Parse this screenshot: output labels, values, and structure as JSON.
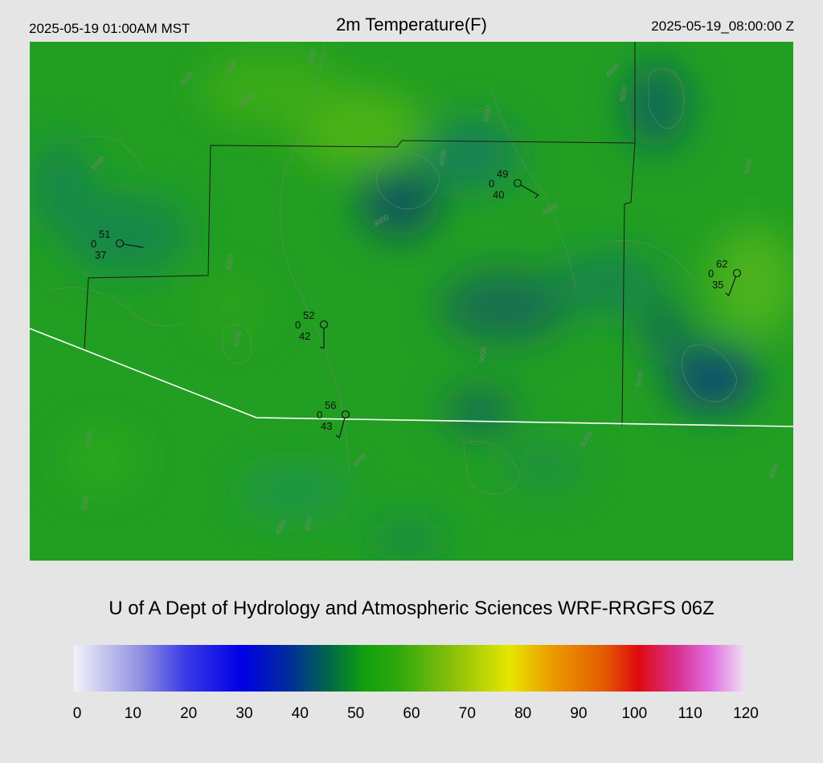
{
  "header": {
    "local_time": "2025-05-19 01:00AM MST",
    "title": "2m Temperature(F)",
    "utc_time": "2025-05-19_08:00:00 Z"
  },
  "credit": "U of A Dept of Hydrology and Atmospheric Sciences WRF-RRGFS 06Z",
  "colorbar": {
    "ticks": [
      "0",
      "10",
      "20",
      "30",
      "40",
      "50",
      "60",
      "70",
      "80",
      "90",
      "100",
      "110",
      "120"
    ],
    "stops": [
      {
        "v": 0,
        "c": "#f2f2f8"
      },
      {
        "v": 12,
        "c": "#8f8fe2"
      },
      {
        "v": 20,
        "c": "#3a3ae6"
      },
      {
        "v": 30,
        "c": "#0000e6"
      },
      {
        "v": 38,
        "c": "#002aa0"
      },
      {
        "v": 46,
        "c": "#006a45"
      },
      {
        "v": 52,
        "c": "#10a010"
      },
      {
        "v": 58,
        "c": "#2ea80d"
      },
      {
        "v": 68,
        "c": "#8cc10a"
      },
      {
        "v": 78,
        "c": "#e6e600"
      },
      {
        "v": 85,
        "c": "#eca000"
      },
      {
        "v": 95,
        "c": "#e35a00"
      },
      {
        "v": 101,
        "c": "#e00a10"
      },
      {
        "v": 108,
        "c": "#d83090"
      },
      {
        "v": 114,
        "c": "#e070e0"
      },
      {
        "v": 120,
        "c": "#efdcef"
      }
    ]
  },
  "map": {
    "base_color": "#229e22",
    "stations": [
      {
        "temp": "51",
        "dew": "37",
        "sky": "0",
        "wind_dir_deg": 100,
        "barbs": 0
      },
      {
        "temp": "49",
        "dew": "40",
        "sky": "0",
        "wind_dir_deg": 120,
        "barbs": 1
      },
      {
        "temp": "52",
        "dew": "42",
        "sky": "0",
        "wind_dir_deg": 180,
        "barbs": 1
      },
      {
        "temp": "62",
        "dew": "35",
        "sky": "0",
        "wind_dir_deg": 200,
        "barbs": 1
      },
      {
        "temp": "56",
        "dew": "43",
        "sky": "0",
        "wind_dir_deg": 195,
        "barbs": 1
      }
    ],
    "contour_labels": [
      "3000",
      "4000",
      "5000",
      "5000",
      "5000",
      "5000",
      "4000",
      "5000",
      "5000",
      "4000",
      "4000",
      "4000",
      "5000",
      "4000",
      "5000",
      "4000",
      "4000",
      "3000",
      "4000",
      "5000",
      "4000",
      "3000",
      "5000"
    ]
  }
}
